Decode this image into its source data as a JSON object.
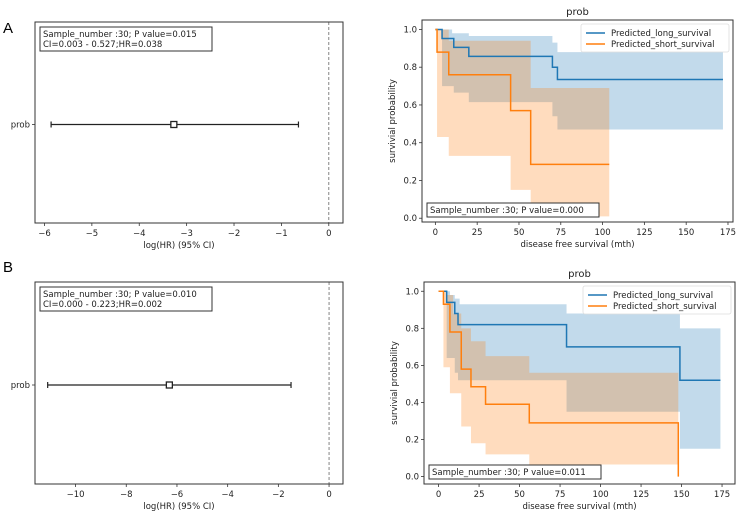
{
  "figure": {
    "panels": [
      "A",
      "B"
    ]
  },
  "chart_data": [
    {
      "id": "A-forest",
      "panel": "A",
      "type": "scatter",
      "subtype": "forest",
      "title": "",
      "xlabel": "log(HR) (95% CI)",
      "ylabel": "",
      "xlim": [
        -6.2,
        0.3
      ],
      "xticks": [
        -6,
        -5,
        -4,
        -3,
        -2,
        -1,
        0
      ],
      "xtick_labels": [
        "−6",
        "−5",
        "−4",
        "−3",
        "−2",
        "−1",
        "0"
      ],
      "categories": [
        "prob"
      ],
      "points": [
        {
          "label": "prob",
          "log_hr": -3.27,
          "ci_low": -5.86,
          "ci_high": -0.64
        }
      ],
      "reference_line": 0,
      "annotation": [
        "Sample_number :30; P value=0.015",
        "CI=0.003 - 0.527;HR=0.038"
      ]
    },
    {
      "id": "A-km",
      "panel": "A",
      "type": "line",
      "subtype": "kaplan-meier",
      "title": "prob",
      "xlabel": "disease free survival (mth)",
      "ylabel": "survivial probability",
      "xlim": [
        -8,
        178
      ],
      "ylim": [
        -0.02,
        1.05
      ],
      "xticks": [
        0,
        25,
        50,
        75,
        100,
        125,
        150,
        175
      ],
      "yticks": [
        0.0,
        0.2,
        0.4,
        0.6,
        0.8,
        1.0
      ],
      "ytick_labels": [
        "0.0",
        "0.2",
        "0.4",
        "0.6",
        "0.8",
        "1.0"
      ],
      "legend_position": "top-right",
      "series": [
        {
          "name": "Predicted_long_survival",
          "color": "#1f77b4",
          "steps": [
            [
              0,
              1.0
            ],
            [
              4,
              0.952
            ],
            [
              11,
              0.905
            ],
            [
              20,
              0.857
            ],
            [
              70,
              0.8
            ],
            [
              73,
              0.735
            ],
            [
              172,
              0.735
            ]
          ],
          "ci_upper": [
            [
              0,
              1.0
            ],
            [
              10,
              0.98
            ],
            [
              20,
              0.965
            ],
            [
              70,
              0.93
            ],
            [
              73,
              0.88
            ],
            [
              172,
              0.88
            ]
          ],
          "ci_lower": [
            [
              0,
              1.0
            ],
            [
              4,
              0.7
            ],
            [
              11,
              0.665
            ],
            [
              20,
              0.615
            ],
            [
              70,
              0.54
            ],
            [
              73,
              0.47
            ],
            [
              172,
              0.47
            ]
          ]
        },
        {
          "name": "Predicted_short_survival",
          "color": "#ff7f0e",
          "steps": [
            [
              0,
              1.0
            ],
            [
              1,
              0.88
            ],
            [
              8,
              0.76
            ],
            [
              45,
              0.57
            ],
            [
              57,
              0.285
            ],
            [
              104,
              0.285
            ]
          ],
          "ci_upper": [
            [
              0,
              1.0
            ],
            [
              5,
              1.0
            ],
            [
              8,
              0.94
            ],
            [
              45,
              0.94
            ],
            [
              57,
              0.69
            ],
            [
              104,
              0.69
            ]
          ],
          "ci_lower": [
            [
              0,
              1.0
            ],
            [
              1,
              0.43
            ],
            [
              8,
              0.33
            ],
            [
              45,
              0.15
            ],
            [
              57,
              0.01
            ],
            [
              104,
              0.01
            ]
          ]
        }
      ],
      "annotation": "Sample_number :30; P value=0.000"
    },
    {
      "id": "B-forest",
      "panel": "B",
      "type": "scatter",
      "subtype": "forest",
      "title": "",
      "xlabel": "log(HR) (95% CI)",
      "ylabel": "",
      "xlim": [
        -11.6,
        0.55
      ],
      "xticks": [
        -10,
        -8,
        -6,
        -4,
        -2,
        0
      ],
      "xtick_labels": [
        "−10",
        "−8",
        "−6",
        "−4",
        "−2",
        "0"
      ],
      "categories": [
        "prob"
      ],
      "points": [
        {
          "label": "prob",
          "log_hr": -6.3,
          "ci_low": -11.1,
          "ci_high": -1.5
        }
      ],
      "reference_line": 0,
      "annotation": [
        "Sample_number :30; P value=0.010",
        "CI=0.000 - 0.223;HR=0.002"
      ]
    },
    {
      "id": "B-km",
      "panel": "B",
      "type": "line",
      "subtype": "kaplan-meier",
      "title": "prob",
      "xlabel": "disease free survival (mth)",
      "ylabel": "survivial probability",
      "xlim": [
        -9,
        183
      ],
      "ylim": [
        -0.04,
        1.05
      ],
      "xticks": [
        0,
        25,
        50,
        75,
        100,
        125,
        150,
        175
      ],
      "yticks": [
        0.0,
        0.2,
        0.4,
        0.6,
        0.8,
        1.0
      ],
      "ytick_labels": [
        "0.0",
        "0.2",
        "0.4",
        "0.6",
        "0.8",
        "1.0"
      ],
      "legend_position": "top-right",
      "series": [
        {
          "name": "Predicted_long_survival",
          "color": "#1f77b4",
          "steps": [
            [
              0,
              1.0
            ],
            [
              5,
              0.94
            ],
            [
              10,
              0.88
            ],
            [
              12,
              0.82
            ],
            [
              79,
              0.7
            ],
            [
              149,
              0.52
            ],
            [
              174,
              0.52
            ]
          ],
          "ci_upper": [
            [
              0,
              1.0
            ],
            [
              7,
              0.98
            ],
            [
              10,
              0.96
            ],
            [
              13,
              0.93
            ],
            [
              79,
              0.88
            ],
            [
              149,
              0.8
            ],
            [
              174,
              0.8
            ]
          ],
          "ci_lower": [
            [
              0,
              1.0
            ],
            [
              5,
              0.64
            ],
            [
              10,
              0.56
            ],
            [
              12,
              0.52
            ],
            [
              79,
              0.35
            ],
            [
              149,
              0.15
            ],
            [
              174,
              0.15
            ]
          ]
        },
        {
          "name": "Predicted_short_survival",
          "color": "#ff7f0e",
          "steps": [
            [
              0,
              1.0
            ],
            [
              3,
              0.93
            ],
            [
              7,
              0.78
            ],
            [
              14,
              0.58
            ],
            [
              20,
              0.485
            ],
            [
              29,
              0.39
            ],
            [
              56,
              0.29
            ],
            [
              148,
              0.29
            ],
            [
              148,
              0.0
            ]
          ],
          "ci_upper": [
            [
              0,
              1.0
            ],
            [
              5,
              0.98
            ],
            [
              9,
              0.88
            ],
            [
              14,
              0.8
            ],
            [
              20,
              0.73
            ],
            [
              29,
              0.65
            ],
            [
              56,
              0.56
            ],
            [
              148,
              0.56
            ]
          ],
          "ci_lower": [
            [
              0,
              1.0
            ],
            [
              3,
              0.59
            ],
            [
              7,
              0.45
            ],
            [
              14,
              0.27
            ],
            [
              20,
              0.18
            ],
            [
              29,
              0.12
            ],
            [
              56,
              0.065
            ],
            [
              148,
              0.065
            ]
          ]
        }
      ],
      "annotation": "Sample_number :30; P value=0.011"
    }
  ]
}
